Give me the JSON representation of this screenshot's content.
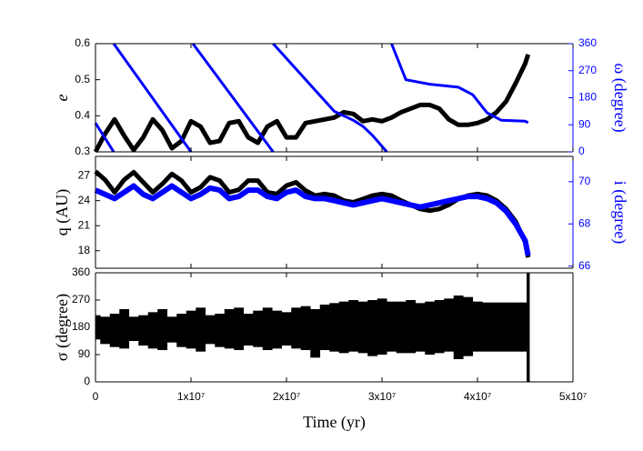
{
  "chart_data": [
    {
      "type": "line",
      "ylabel": "e",
      "y2label": "ω (degree)",
      "xlim": [
        0,
        50000000
      ],
      "x": [
        0,
        1000000,
        2000000,
        3000000,
        4000000,
        5000000,
        6000000,
        7000000,
        8000000,
        9000000,
        10000000,
        11000000,
        12000000,
        13000000,
        14000000,
        15000000,
        16000000,
        17000000,
        18000000,
        19000000,
        20000000,
        21000000,
        22000000,
        23000000,
        24000000,
        25000000,
        26000000,
        27000000,
        28000000,
        29000000,
        30000000,
        31000000,
        32000000,
        33000000,
        34000000,
        35000000,
        36000000,
        37000000,
        38000000,
        39000000,
        40000000,
        41000000,
        42000000,
        43000000,
        44000000,
        45000000,
        45300000
      ],
      "ylim": [
        0.3,
        0.6
      ],
      "yticks": [
        0.3,
        0.4,
        0.5,
        0.6
      ],
      "y2lim": [
        0,
        360
      ],
      "y2ticks": [
        0,
        90,
        180,
        270,
        360
      ],
      "y2color": "#0000ff",
      "series": [
        {
          "color": "#000000",
          "values": [
            0.3,
            0.35,
            0.39,
            0.345,
            0.305,
            0.34,
            0.39,
            0.36,
            0.31,
            0.33,
            0.385,
            0.37,
            0.325,
            0.33,
            0.38,
            0.385,
            0.34,
            0.325,
            0.37,
            0.385,
            0.34,
            0.34,
            0.38,
            0.385,
            0.39,
            0.395,
            0.41,
            0.405,
            0.385,
            0.39,
            0.385,
            0.395,
            0.41,
            0.42,
            0.43,
            0.43,
            0.42,
            0.39,
            0.375,
            0.375,
            0.38,
            0.39,
            0.41,
            0.44,
            0.49,
            0.545,
            0.57
          ]
        },
        {
          "color": "#0000ff",
          "axis": "y2",
          "x": [
            0,
            1900000,
            null,
            1900000,
            10000000,
            null,
            10200000,
            18600000,
            null,
            18600000,
            24000000,
            25000000,
            27000000,
            28000000,
            29000000,
            30500000,
            null,
            31000000,
            32500000,
            35000000,
            38000000,
            39500000,
            41000000,
            42500000,
            45000000,
            45300000
          ],
          "values": [
            96,
            0,
            null,
            360,
            0,
            null,
            360,
            0,
            null,
            360,
            170,
            135,
            105,
            85,
            55,
            0,
            null,
            360,
            240,
            225,
            215,
            190,
            130,
            105,
            102,
            97
          ]
        }
      ]
    },
    {
      "type": "line",
      "ylabel": "q (AU)",
      "y2label": "i (degree)",
      "xlim": [
        0,
        50000000
      ],
      "x": [
        0,
        1000000,
        2000000,
        3000000,
        4000000,
        5000000,
        6000000,
        7000000,
        8000000,
        9000000,
        10000000,
        11000000,
        12000000,
        13000000,
        14000000,
        15000000,
        16000000,
        17000000,
        18000000,
        19000000,
        20000000,
        21000000,
        22000000,
        23000000,
        24000000,
        25000000,
        26000000,
        27000000,
        28000000,
        29000000,
        30000000,
        31000000,
        32000000,
        33000000,
        34000000,
        35000000,
        36000000,
        37000000,
        38000000,
        39000000,
        40000000,
        41000000,
        42000000,
        43000000,
        44000000,
        45000000,
        45300000
      ],
      "ylim": [
        15.9,
        29.3
      ],
      "yticks": [
        18,
        21,
        24,
        27
      ],
      "y2lim": [
        65.9,
        71.2
      ],
      "y2ticks": [
        66,
        68,
        70
      ],
      "y2color": "#0000ff",
      "series": [
        {
          "color": "#000000",
          "values": [
            27.5,
            26.5,
            25.0,
            26.5,
            27.4,
            26.2,
            25.0,
            26.0,
            27.2,
            26.4,
            25.0,
            25.6,
            26.8,
            26.4,
            25.0,
            25.3,
            26.4,
            26.4,
            25.0,
            24.8,
            25.8,
            26.2,
            25.2,
            24.6,
            24.8,
            24.6,
            24.0,
            23.8,
            24.2,
            24.6,
            24.8,
            24.6,
            24.0,
            23.5,
            23.0,
            22.8,
            23.0,
            23.5,
            24.2,
            24.6,
            24.8,
            24.6,
            24.0,
            23.0,
            21.5,
            19.0,
            17.2
          ]
        },
        {
          "color": "#0000ff",
          "axis": "y2",
          "values": [
            69.6,
            69.4,
            69.2,
            69.5,
            69.8,
            69.4,
            69.2,
            69.5,
            69.8,
            69.5,
            69.2,
            69.4,
            69.7,
            69.6,
            69.2,
            69.3,
            69.6,
            69.6,
            69.3,
            69.2,
            69.5,
            69.6,
            69.3,
            69.2,
            69.2,
            69.1,
            69.0,
            68.9,
            69.0,
            69.1,
            69.2,
            69.1,
            69.0,
            68.9,
            68.8,
            68.9,
            69.0,
            69.1,
            69.2,
            69.3,
            69.3,
            69.2,
            69.0,
            68.6,
            68.0,
            67.2,
            66.5
          ]
        }
      ]
    },
    {
      "type": "range",
      "ylabel": "σ (degree)",
      "xlabel": "Time (yr)",
      "xlim": [
        0,
        50000000
      ],
      "xticks": [
        0,
        {
          "value": 10000000,
          "label": "1x10⁷"
        },
        {
          "value": 20000000,
          "label": "2x10⁷"
        },
        {
          "value": 30000000,
          "label": "3x10⁷"
        },
        {
          "value": 40000000,
          "label": "4x10⁷"
        },
        {
          "value": 50000000,
          "label": "5x10⁷"
        }
      ],
      "x": [
        0,
        1000000,
        2000000,
        3000000,
        4000000,
        5000000,
        6000000,
        7000000,
        8000000,
        9000000,
        10000000,
        11000000,
        12000000,
        13000000,
        14000000,
        15000000,
        16000000,
        17000000,
        18000000,
        19000000,
        20000000,
        21000000,
        22000000,
        23000000,
        24000000,
        25000000,
        26000000,
        27000000,
        28000000,
        29000000,
        30000000,
        31000000,
        32000000,
        33000000,
        34000000,
        35000000,
        36000000,
        37000000,
        38000000,
        39000000,
        40000000,
        41000000,
        42000000,
        43000000,
        44000000,
        45000000,
        45300000
      ],
      "ylim": [
        0,
        360
      ],
      "yticks": [
        0,
        90,
        180,
        270,
        360
      ],
      "series": [
        {
          "color": "#000000",
          "values": [
            140,
            125,
            115,
            110,
            135,
            120,
            110,
            105,
            130,
            115,
            110,
            100,
            125,
            115,
            110,
            105,
            120,
            115,
            105,
            110,
            120,
            110,
            105,
            80,
            105,
            100,
            95,
            100,
            95,
            85,
            90,
            100,
            95,
            95,
            100,
            90,
            95,
            100,
            75,
            85,
            100,
            100,
            100,
            100,
            100,
            100,
            0
          ]
        },
        {
          "color": "#000000",
          "values": [
            220,
            215,
            225,
            240,
            215,
            220,
            230,
            240,
            215,
            225,
            235,
            245,
            220,
            225,
            240,
            245,
            225,
            235,
            245,
            235,
            230,
            245,
            250,
            240,
            255,
            260,
            265,
            270,
            265,
            270,
            275,
            265,
            265,
            270,
            260,
            265,
            270,
            275,
            285,
            280,
            265,
            262,
            262,
            262,
            262,
            262,
            360
          ]
        }
      ]
    }
  ]
}
